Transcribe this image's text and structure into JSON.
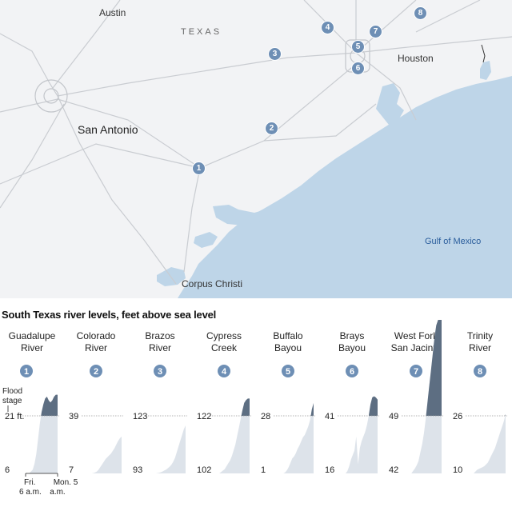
{
  "map": {
    "cities": [
      {
        "name": "Austin",
        "size": "small"
      },
      {
        "name": "San Antonio",
        "size": "large"
      },
      {
        "name": "Houston",
        "size": "small"
      },
      {
        "name": "Corpus Christi",
        "size": "small"
      }
    ],
    "state_label": "TEXAS",
    "water_label": "Gulf of Mexico",
    "colors": {
      "land": "#f2f3f5",
      "water": "#bed5e8",
      "roads": "#c9ccd1",
      "badge": "#6e8fb5"
    }
  },
  "chart_data": {
    "type": "area",
    "title": "South Texas river levels, feet above sea level",
    "y_label_extra": "Flood stage",
    "x_start_label": [
      "Fri.",
      "6 a.m."
    ],
    "x_end_label": [
      "Mon. 5",
      "a.m."
    ],
    "colors": {
      "below_flood": "#dde3ea",
      "above_flood": "#5d6e82",
      "flood_line": "#999999"
    },
    "gauges": [
      {
        "number": "1",
        "name": [
          "Guadalupe",
          "River"
        ],
        "y_min_label": "6",
        "flood_label": "21 ft.",
        "y_min": 6,
        "flood": 21,
        "values": [
          6,
          6,
          6,
          6.5,
          7,
          8.5,
          11,
          15,
          19,
          22,
          24,
          25.5,
          26,
          25,
          24.5,
          25,
          26,
          26.5,
          26.5
        ]
      },
      {
        "number": "2",
        "name": [
          "Colorado",
          "River"
        ],
        "y_min_label": "7",
        "flood_label": "39",
        "y_min": 7,
        "flood": 39,
        "values": [
          7,
          7,
          7.2,
          7.5,
          8,
          9,
          10.5,
          12,
          13.5,
          15,
          16,
          17,
          18,
          19.5,
          21,
          23,
          25,
          26.5,
          27.5
        ]
      },
      {
        "number": "3",
        "name": [
          "Brazos",
          "River"
        ],
        "y_min_label": "93",
        "flood_label": "123",
        "y_min": 93,
        "flood": 123,
        "values": [
          93,
          93,
          93.1,
          93.3,
          93.6,
          94,
          94.5,
          95,
          95.7,
          96.5,
          97.5,
          99,
          101,
          104,
          107,
          110,
          113,
          116,
          118
        ]
      },
      {
        "number": "4",
        "name": [
          "Cypress",
          "Creek"
        ],
        "y_min_label": "102",
        "flood_label": "122",
        "y_min": 102,
        "flood": 122,
        "values": [
          102,
          102,
          102.5,
          103,
          103.5,
          104.5,
          105.5,
          106.5,
          108,
          110,
          112,
          115,
          118,
          121,
          124,
          126.5,
          127.5,
          128,
          128
        ]
      },
      {
        "number": "5",
        "name": [
          "Buffalo",
          "Bayou"
        ],
        "y_min_label": "1",
        "flood_label": "28",
        "y_min": 1,
        "flood": 28,
        "values": [
          1,
          1,
          1.5,
          2.5,
          4,
          6,
          8,
          9,
          10.5,
          12.5,
          14,
          16,
          18,
          19,
          21,
          23,
          26,
          31,
          34
        ]
      },
      {
        "number": "6",
        "name": [
          "Brays",
          "Bayou"
        ],
        "y_min_label": "16",
        "flood_label": "41",
        "y_min": 16,
        "flood": 41,
        "values": [
          16,
          17,
          19,
          22,
          24,
          26,
          32,
          20,
          27,
          30,
          32,
          34,
          37,
          41,
          46,
          49,
          49.5,
          49,
          48
        ]
      },
      {
        "number": "7",
        "name": [
          "West Fork",
          "San Jacinto"
        ],
        "y_min_label": "42",
        "flood_label": "49",
        "y_min": 42,
        "flood": 49,
        "values": [
          42,
          42,
          42.3,
          42.6,
          43,
          43.5,
          44.5,
          45.5,
          46.8,
          48.5,
          50.5,
          52.5,
          54.5,
          56.5,
          58.5,
          60,
          61.2,
          62,
          62.5
        ]
      },
      {
        "number": "8",
        "name": [
          "Trinity",
          "River"
        ],
        "y_min_label": "10",
        "flood_label": "26",
        "y_min": 10,
        "flood": 26,
        "values": [
          10,
          10.5,
          11,
          11.3,
          11.5,
          11.7,
          12,
          12.5,
          13,
          14,
          15,
          16,
          17,
          18.5,
          20,
          21.5,
          23,
          24.5,
          26.5
        ]
      }
    ]
  }
}
